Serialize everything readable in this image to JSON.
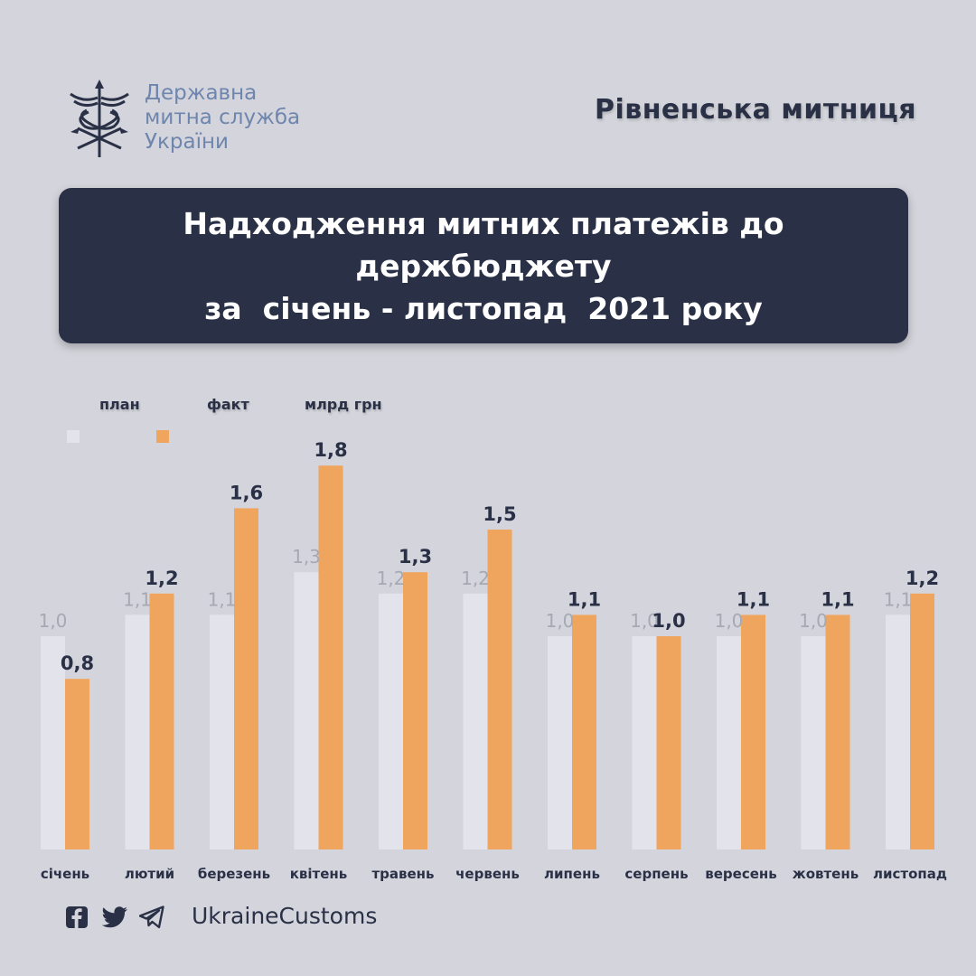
{
  "header": {
    "logo_lines": [
      "Державна",
      "митна служба",
      "України"
    ],
    "office_name": "Рівненська митниця"
  },
  "banner": {
    "lines": [
      "Надходження митних платежів до",
      "держбюджету",
      "за  січень - листопад  2021 року"
    ]
  },
  "legend": {
    "plan_label": "план",
    "fact_label": "факт",
    "unit_label": "млрд грн"
  },
  "colors": {
    "plan": "#e3e3ec",
    "fact": "#f0a55e",
    "dark": "#2a3147",
    "plan_label": "#a6a8b2"
  },
  "chart_data": {
    "type": "bar",
    "categories": [
      "січень",
      "лютий",
      "березень",
      "квітень",
      "травень",
      "червень",
      "липень",
      "серпень",
      "вересень",
      "жовтень",
      "листопад"
    ],
    "series": [
      {
        "name": "план",
        "values": [
          1.0,
          1.1,
          1.1,
          1.3,
          1.2,
          1.2,
          1.0,
          1.0,
          1.0,
          1.0,
          1.1
        ]
      },
      {
        "name": "факт",
        "values": [
          0.8,
          1.2,
          1.6,
          1.8,
          1.3,
          1.5,
          1.1,
          1.0,
          1.1,
          1.1,
          1.2
        ]
      }
    ],
    "plan_labels": [
      "1,0",
      "1,1",
      "1,1",
      "1,3",
      "1,2",
      "1,2",
      "1,0",
      "1,0",
      "1,0",
      "1,0",
      "1,1"
    ],
    "fact_labels": [
      "0,8",
      "1,2",
      "1,6",
      "1,8",
      "1,3",
      "1,5",
      "1,1",
      "1,0",
      "1,1",
      "1,1",
      "1,2"
    ],
    "unit": "млрд грн",
    "ylim": [
      0,
      1.8
    ]
  },
  "footer": {
    "handle": "UkraineCustoms",
    "icons": [
      "facebook-icon",
      "twitter-icon",
      "telegram-icon"
    ]
  }
}
